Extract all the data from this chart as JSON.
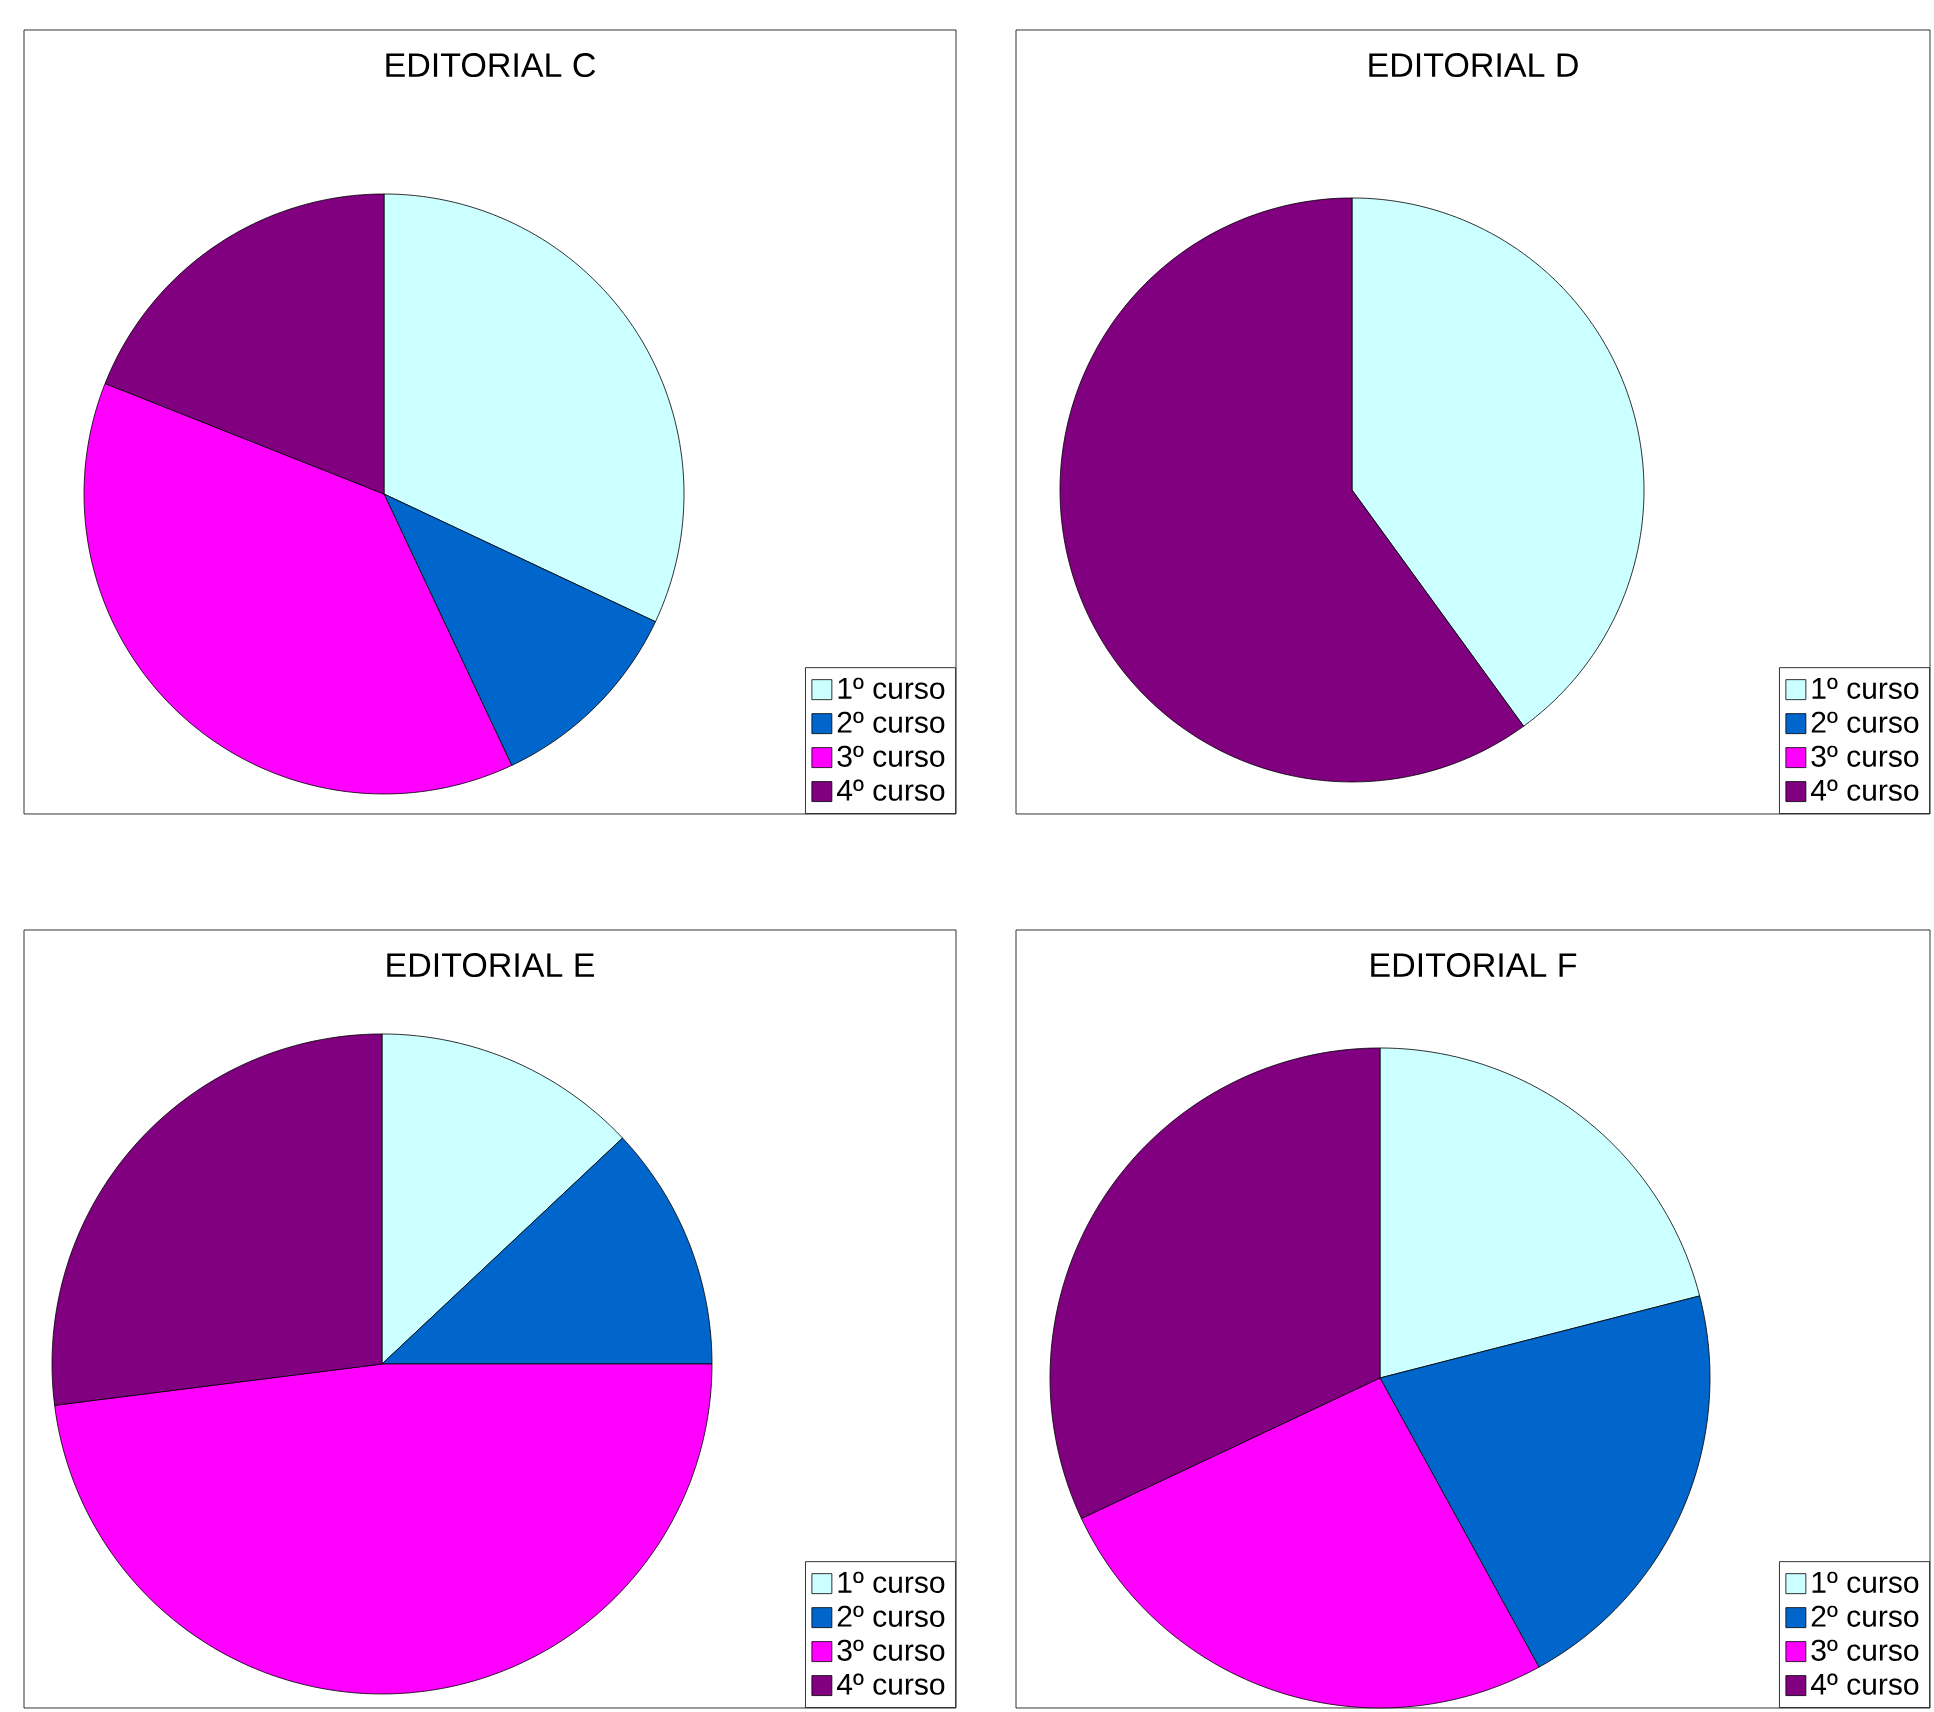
{
  "chart_data": [
    {
      "type": "pie",
      "title": "EDITORIAL C",
      "categories": [
        "1º curso",
        "2º curso",
        "3º curso",
        "4º curso"
      ],
      "values": [
        32,
        11,
        38,
        19
      ],
      "colors": [
        "#ccffff",
        "#0066cc",
        "#ff00ff",
        "#800080"
      ],
      "legend": "bottom right"
    },
    {
      "type": "pie",
      "title": "EDITORIAL D",
      "categories": [
        "1º curso",
        "2º curso",
        "3º curso",
        "4º curso"
      ],
      "values": [
        40,
        0,
        0,
        60
      ],
      "colors": [
        "#ccffff",
        "#0066cc",
        "#ff00ff",
        "#800080"
      ],
      "legend": "bottom right"
    },
    {
      "type": "pie",
      "title": "EDITORIAL E",
      "categories": [
        "1º curso",
        "2º curso",
        "3º curso",
        "4º curso"
      ],
      "values": [
        13,
        12,
        48,
        27
      ],
      "colors": [
        "#ccffff",
        "#0066cc",
        "#ff00ff",
        "#800080"
      ],
      "legend": "bottom right"
    },
    {
      "type": "pie",
      "title": "EDITORIAL F",
      "categories": [
        "1º curso",
        "2º curso",
        "3º curso",
        "4º curso"
      ],
      "values": [
        21,
        21,
        26,
        32
      ],
      "colors": [
        "#ccffff",
        "#0066cc",
        "#ff00ff",
        "#800080"
      ],
      "legend": "bottom right"
    }
  ]
}
